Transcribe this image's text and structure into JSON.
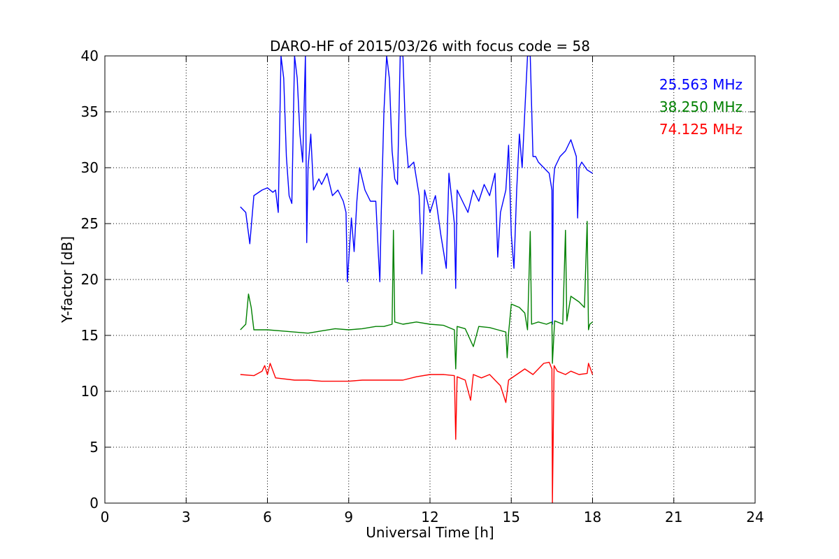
{
  "chart_data": {
    "type": "line",
    "title": "DARO-HF of 2015/03/26 with focus code = 58",
    "xlabel": "Universal Time [h]",
    "ylabel": "Y-factor [dB]",
    "xlim": [
      0,
      24
    ],
    "ylim": [
      0,
      40
    ],
    "xticks": [
      0,
      3,
      6,
      9,
      12,
      15,
      18,
      21,
      24
    ],
    "yticks": [
      0,
      5,
      10,
      15,
      20,
      25,
      30,
      35,
      40
    ],
    "grid": true,
    "legend_position": "top-right",
    "series": [
      {
        "name": "25.563 MHz",
        "color": "#0000ff",
        "points": [
          [
            5.0,
            26.5
          ],
          [
            5.2,
            26.0
          ],
          [
            5.35,
            23.2
          ],
          [
            5.5,
            27.5
          ],
          [
            5.8,
            28.0
          ],
          [
            6.0,
            28.2
          ],
          [
            6.2,
            27.8
          ],
          [
            6.3,
            28.0
          ],
          [
            6.4,
            26.0
          ],
          [
            6.45,
            33.0
          ],
          [
            6.5,
            40.0
          ],
          [
            6.6,
            38.0
          ],
          [
            6.7,
            31.0
          ],
          [
            6.8,
            27.5
          ],
          [
            6.9,
            26.8
          ],
          [
            7.0,
            40.0
          ],
          [
            7.1,
            38.0
          ],
          [
            7.2,
            33.0
          ],
          [
            7.3,
            30.5
          ],
          [
            7.4,
            40.0
          ],
          [
            7.45,
            23.3
          ],
          [
            7.5,
            30.0
          ],
          [
            7.6,
            33.0
          ],
          [
            7.7,
            28.0
          ],
          [
            7.9,
            29.0
          ],
          [
            8.0,
            28.5
          ],
          [
            8.2,
            29.5
          ],
          [
            8.4,
            27.5
          ],
          [
            8.6,
            28.0
          ],
          [
            8.8,
            27.0
          ],
          [
            8.9,
            26.0
          ],
          [
            8.95,
            19.8
          ],
          [
            9.1,
            25.5
          ],
          [
            9.2,
            22.5
          ],
          [
            9.3,
            27.0
          ],
          [
            9.4,
            30.0
          ],
          [
            9.6,
            28.0
          ],
          [
            9.8,
            27.0
          ],
          [
            10.0,
            27.0
          ],
          [
            10.1,
            22.0
          ],
          [
            10.15,
            19.8
          ],
          [
            10.2,
            26.0
          ],
          [
            10.3,
            35.0
          ],
          [
            10.4,
            40.0
          ],
          [
            10.5,
            38.0
          ],
          [
            10.6,
            31.5
          ],
          [
            10.7,
            29.0
          ],
          [
            10.8,
            28.5
          ],
          [
            10.9,
            40.0
          ],
          [
            11.0,
            40.0
          ],
          [
            11.1,
            33.0
          ],
          [
            11.2,
            30.0
          ],
          [
            11.4,
            30.5
          ],
          [
            11.6,
            27.5
          ],
          [
            11.7,
            20.5
          ],
          [
            11.8,
            28.0
          ],
          [
            12.0,
            26.0
          ],
          [
            12.2,
            27.5
          ],
          [
            12.4,
            24.0
          ],
          [
            12.6,
            21.0
          ],
          [
            12.7,
            29.5
          ],
          [
            12.9,
            25.0
          ],
          [
            12.95,
            19.2
          ],
          [
            13.0,
            28.0
          ],
          [
            13.2,
            27.0
          ],
          [
            13.4,
            26.0
          ],
          [
            13.6,
            28.0
          ],
          [
            13.8,
            27.0
          ],
          [
            14.0,
            28.5
          ],
          [
            14.2,
            27.5
          ],
          [
            14.4,
            29.5
          ],
          [
            14.5,
            22.0
          ],
          [
            14.6,
            26.0
          ],
          [
            14.8,
            28.0
          ],
          [
            14.9,
            32.0
          ],
          [
            15.0,
            24.0
          ],
          [
            15.1,
            21.0
          ],
          [
            15.2,
            28.0
          ],
          [
            15.3,
            33.0
          ],
          [
            15.4,
            30.0
          ],
          [
            15.5,
            35.0
          ],
          [
            15.6,
            40.0
          ],
          [
            15.7,
            40.0
          ],
          [
            15.8,
            31.0
          ],
          [
            15.9,
            31.0
          ],
          [
            16.0,
            30.5
          ],
          [
            16.2,
            30.0
          ],
          [
            16.4,
            29.5
          ],
          [
            16.5,
            28.0
          ],
          [
            16.52,
            16.0
          ],
          [
            16.55,
            28.5
          ],
          [
            16.6,
            30.0
          ],
          [
            16.8,
            31.0
          ],
          [
            17.0,
            31.5
          ],
          [
            17.2,
            32.5
          ],
          [
            17.4,
            31.0
          ],
          [
            17.45,
            25.5
          ],
          [
            17.5,
            30.0
          ],
          [
            17.6,
            30.5
          ],
          [
            17.8,
            29.8
          ],
          [
            18.0,
            29.5
          ]
        ]
      },
      {
        "name": "38.250 MHz",
        "color": "#008000",
        "points": [
          [
            5.0,
            15.5
          ],
          [
            5.2,
            16.0
          ],
          [
            5.3,
            18.7
          ],
          [
            5.4,
            17.5
          ],
          [
            5.5,
            15.5
          ],
          [
            6.0,
            15.5
          ],
          [
            6.5,
            15.4
          ],
          [
            7.0,
            15.3
          ],
          [
            7.5,
            15.2
          ],
          [
            8.0,
            15.4
          ],
          [
            8.5,
            15.6
          ],
          [
            9.0,
            15.5
          ],
          [
            9.5,
            15.6
          ],
          [
            10.0,
            15.8
          ],
          [
            10.3,
            15.8
          ],
          [
            10.6,
            16.0
          ],
          [
            10.65,
            24.4
          ],
          [
            10.7,
            16.2
          ],
          [
            11.0,
            16.0
          ],
          [
            11.5,
            16.2
          ],
          [
            12.0,
            16.0
          ],
          [
            12.5,
            15.9
          ],
          [
            12.9,
            15.5
          ],
          [
            12.95,
            12.0
          ],
          [
            13.0,
            15.8
          ],
          [
            13.3,
            15.6
          ],
          [
            13.6,
            14.0
          ],
          [
            13.8,
            15.8
          ],
          [
            14.2,
            15.7
          ],
          [
            14.5,
            15.5
          ],
          [
            14.8,
            15.3
          ],
          [
            14.85,
            13.0
          ],
          [
            14.9,
            15.2
          ],
          [
            15.0,
            17.8
          ],
          [
            15.3,
            17.5
          ],
          [
            15.5,
            17.0
          ],
          [
            15.6,
            15.5
          ],
          [
            15.7,
            24.3
          ],
          [
            15.75,
            16.0
          ],
          [
            16.0,
            16.2
          ],
          [
            16.3,
            16.0
          ],
          [
            16.5,
            16.2
          ],
          [
            16.52,
            12.5
          ],
          [
            16.6,
            16.3
          ],
          [
            16.9,
            16.0
          ],
          [
            17.0,
            24.4
          ],
          [
            17.05,
            16.3
          ],
          [
            17.2,
            18.5
          ],
          [
            17.5,
            18.0
          ],
          [
            17.7,
            17.5
          ],
          [
            17.8,
            25.2
          ],
          [
            17.85,
            15.5
          ],
          [
            17.9,
            16.0
          ],
          [
            18.0,
            16.2
          ]
        ]
      },
      {
        "name": "74.125 MHz",
        "color": "#ff0000",
        "points": [
          [
            5.0,
            11.5
          ],
          [
            5.5,
            11.4
          ],
          [
            5.8,
            11.8
          ],
          [
            5.9,
            12.3
          ],
          [
            6.0,
            11.5
          ],
          [
            6.1,
            12.5
          ],
          [
            6.3,
            11.2
          ],
          [
            7.0,
            11.0
          ],
          [
            7.5,
            11.0
          ],
          [
            8.0,
            10.9
          ],
          [
            8.5,
            10.9
          ],
          [
            9.0,
            10.9
          ],
          [
            9.5,
            11.0
          ],
          [
            10.0,
            11.0
          ],
          [
            10.5,
            11.0
          ],
          [
            11.0,
            11.0
          ],
          [
            11.5,
            11.3
          ],
          [
            12.0,
            11.5
          ],
          [
            12.5,
            11.5
          ],
          [
            12.9,
            11.4
          ],
          [
            12.95,
            5.7
          ],
          [
            13.0,
            11.3
          ],
          [
            13.3,
            11.0
          ],
          [
            13.5,
            9.2
          ],
          [
            13.6,
            11.5
          ],
          [
            13.9,
            11.2
          ],
          [
            14.2,
            11.5
          ],
          [
            14.4,
            11.0
          ],
          [
            14.6,
            10.5
          ],
          [
            14.8,
            9.0
          ],
          [
            14.9,
            11.0
          ],
          [
            15.2,
            11.5
          ],
          [
            15.5,
            12.0
          ],
          [
            15.8,
            11.5
          ],
          [
            16.0,
            12.0
          ],
          [
            16.2,
            12.5
          ],
          [
            16.4,
            12.6
          ],
          [
            16.5,
            12.0
          ],
          [
            16.52,
            0.0
          ],
          [
            16.58,
            12.3
          ],
          [
            16.7,
            11.8
          ],
          [
            17.0,
            11.5
          ],
          [
            17.2,
            11.8
          ],
          [
            17.5,
            11.5
          ],
          [
            17.8,
            11.6
          ],
          [
            17.85,
            12.5
          ],
          [
            18.0,
            11.5
          ]
        ]
      }
    ]
  }
}
